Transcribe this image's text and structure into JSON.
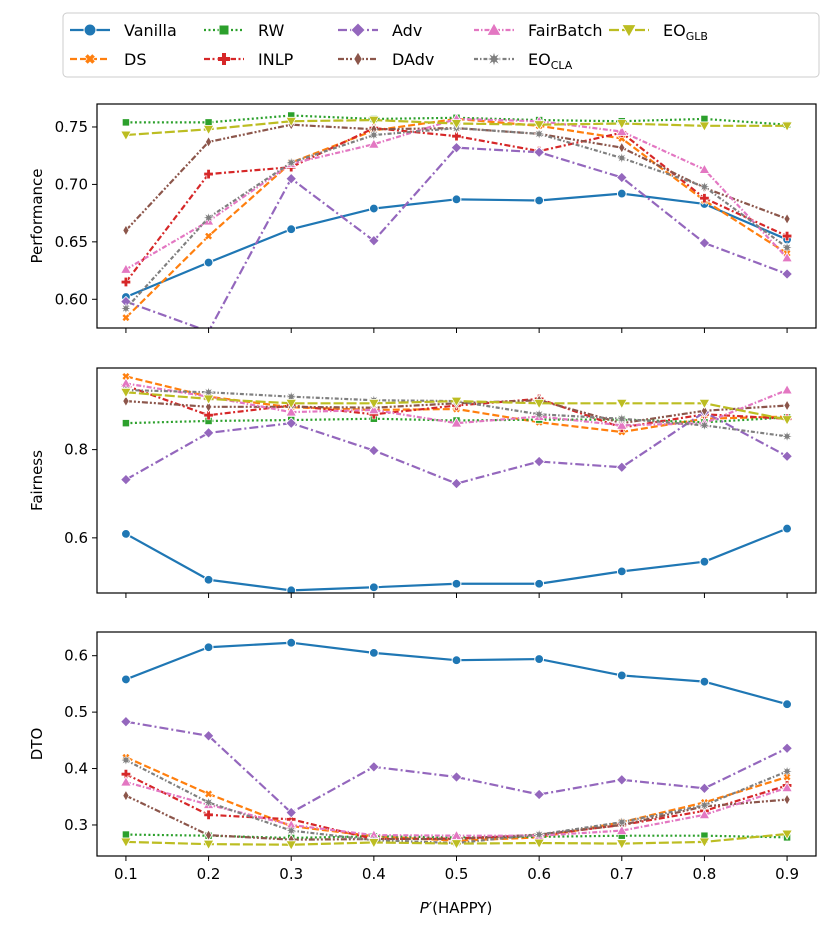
{
  "chart_data": {
    "type": "line",
    "x": [
      0.1,
      0.2,
      0.3,
      0.4,
      0.5,
      0.6,
      0.7,
      0.8,
      0.9
    ],
    "x_ticks": [
      "0.1",
      "0.2",
      "0.3",
      "0.4",
      "0.5",
      "0.6",
      "0.7",
      "0.8",
      "0.9"
    ],
    "xlabel_main": "P′",
    "xlabel_paren": "(HAPPY)",
    "legend": {
      "placement": "top",
      "entries": [
        {
          "name": "Vanilla",
          "sub": "",
          "color": "#1f77b4",
          "dash": "solid",
          "marker": "circle"
        },
        {
          "name": "DS",
          "sub": "",
          "color": "#ff7f0e",
          "dash": "dashed",
          "marker": "x"
        },
        {
          "name": "RW",
          "sub": "",
          "color": "#2ca02c",
          "dash": "dotted",
          "marker": "square"
        },
        {
          "name": "INLP",
          "sub": "",
          "color": "#d62728",
          "dash": "dashdot",
          "marker": "plus"
        },
        {
          "name": "Adv",
          "sub": "",
          "color": "#9467bd",
          "dash": "dashdot-long",
          "marker": "diamond"
        },
        {
          "name": "DAdv",
          "sub": "",
          "color": "#8c564b",
          "dash": "dashdotdot",
          "marker": "thin-diamond"
        },
        {
          "name": "FairBatch",
          "sub": "",
          "color": "#e377c2",
          "dash": "dashdot-dense",
          "marker": "triangle-up"
        },
        {
          "name": "EO",
          "sub": "CLA",
          "color": "#7f7f7f",
          "dash": "dashed-dot-dense",
          "marker": "star"
        },
        {
          "name": "EO",
          "sub": "GLB",
          "color": "#bcbd22",
          "dash": "longdash",
          "marker": "triangle-down"
        }
      ]
    },
    "panels": [
      {
        "ylabel": "Performance",
        "ylim": [
          0.575,
          0.77
        ],
        "y_ticks": [
          0.6,
          0.65,
          0.7,
          0.75
        ],
        "y_tick_labels": [
          "0.60",
          "0.65",
          "0.70",
          "0.75"
        ],
        "series": [
          {
            "name": "Vanilla",
            "values": [
              0.602,
              0.632,
              0.661,
              0.679,
              0.687,
              0.686,
              0.692,
              0.683,
              0.652
            ]
          },
          {
            "name": "DS",
            "values": [
              0.584,
              0.655,
              0.719,
              0.747,
              0.757,
              0.751,
              0.74,
              0.686,
              0.64
            ]
          },
          {
            "name": "RW",
            "values": [
              0.754,
              0.754,
              0.76,
              0.757,
              0.758,
              0.756,
              0.755,
              0.757,
              0.752
            ]
          },
          {
            "name": "INLP",
            "values": [
              0.615,
              0.709,
              0.715,
              0.749,
              0.742,
              0.729,
              0.745,
              0.688,
              0.655
            ]
          },
          {
            "name": "Adv",
            "values": [
              0.598,
              0.572,
              0.705,
              0.651,
              0.732,
              0.728,
              0.706,
              0.649,
              0.622
            ]
          },
          {
            "name": "DAdv",
            "values": [
              0.66,
              0.737,
              0.752,
              0.748,
              0.749,
              0.744,
              0.732,
              0.697,
              0.67
            ]
          },
          {
            "name": "FairBatch",
            "values": [
              0.626,
              0.668,
              0.718,
              0.735,
              0.757,
              0.755,
              0.746,
              0.713,
              0.636
            ]
          },
          {
            "name": "EOCLA",
            "values": [
              0.592,
              0.671,
              0.719,
              0.743,
              0.749,
              0.744,
              0.723,
              0.698,
              0.645
            ]
          },
          {
            "name": "EOGLB",
            "values": [
              0.743,
              0.748,
              0.755,
              0.756,
              0.753,
              0.752,
              0.753,
              0.751,
              0.751
            ]
          }
        ]
      },
      {
        "ylabel": "Fairness",
        "ylim": [
          0.475,
          0.985
        ],
        "y_ticks": [
          0.6,
          0.8
        ],
        "y_tick_labels": [
          "0.6",
          "0.8"
        ],
        "series": [
          {
            "name": "Vanilla",
            "values": [
              0.609,
              0.505,
              0.481,
              0.488,
              0.496,
              0.496,
              0.524,
              0.546,
              0.621
            ]
          },
          {
            "name": "DS",
            "values": [
              0.966,
              0.92,
              0.896,
              0.89,
              0.892,
              0.862,
              0.84,
              0.87,
              0.875
            ]
          },
          {
            "name": "RW",
            "values": [
              0.86,
              0.865,
              0.867,
              0.87,
              0.866,
              0.868,
              0.868,
              0.862,
              0.873
            ]
          },
          {
            "name": "INLP",
            "values": [
              0.945,
              0.878,
              0.9,
              0.88,
              0.9,
              0.915,
              0.85,
              0.88,
              0.87
            ]
          },
          {
            "name": "Adv",
            "values": [
              0.732,
              0.838,
              0.86,
              0.798,
              0.723,
              0.773,
              0.76,
              0.885,
              0.785
            ]
          },
          {
            "name": "DAdv",
            "values": [
              0.91,
              0.897,
              0.897,
              0.895,
              0.905,
              0.912,
              0.86,
              0.888,
              0.9
            ]
          },
          {
            "name": "FairBatch",
            "values": [
              0.95,
              0.92,
              0.885,
              0.89,
              0.86,
              0.875,
              0.855,
              0.86,
              0.935
            ]
          },
          {
            "name": "EOCLA",
            "values": [
              0.935,
              0.93,
              0.92,
              0.912,
              0.91,
              0.88,
              0.87,
              0.855,
              0.83
            ]
          },
          {
            "name": "EOGLB",
            "values": [
              0.93,
              0.915,
              0.905,
              0.905,
              0.91,
              0.905,
              0.905,
              0.905,
              0.868
            ]
          }
        ]
      },
      {
        "ylabel": "DTO",
        "ylim": [
          0.245,
          0.642
        ],
        "y_ticks": [
          0.3,
          0.4,
          0.5,
          0.6
        ],
        "y_tick_labels": [
          "0.3",
          "0.4",
          "0.5",
          "0.6"
        ],
        "series": [
          {
            "name": "Vanilla",
            "values": [
              0.558,
              0.615,
              0.623,
              0.605,
              0.592,
              0.594,
              0.565,
              0.554,
              0.514
            ]
          },
          {
            "name": "DS",
            "values": [
              0.42,
              0.355,
              0.298,
              0.28,
              0.272,
              0.278,
              0.305,
              0.34,
              0.385
            ]
          },
          {
            "name": "RW",
            "values": [
              0.283,
              0.281,
              0.277,
              0.28,
              0.278,
              0.279,
              0.281,
              0.281,
              0.278
            ]
          },
          {
            "name": "INLP",
            "values": [
              0.39,
              0.318,
              0.31,
              0.275,
              0.276,
              0.282,
              0.3,
              0.325,
              0.37
            ]
          },
          {
            "name": "Adv",
            "values": [
              0.483,
              0.458,
              0.322,
              0.403,
              0.385,
              0.354,
              0.38,
              0.365,
              0.436
            ]
          },
          {
            "name": "DAdv",
            "values": [
              0.352,
              0.282,
              0.274,
              0.275,
              0.275,
              0.283,
              0.3,
              0.333,
              0.345
            ]
          },
          {
            "name": "FairBatch",
            "values": [
              0.376,
              0.336,
              0.3,
              0.282,
              0.281,
              0.281,
              0.29,
              0.318,
              0.366
            ]
          },
          {
            "name": "EOCLA",
            "values": [
              0.415,
              0.34,
              0.29,
              0.273,
              0.268,
              0.283,
              0.305,
              0.335,
              0.395
            ]
          },
          {
            "name": "EOGLB",
            "values": [
              0.27,
              0.266,
              0.265,
              0.269,
              0.267,
              0.268,
              0.267,
              0.27,
              0.284
            ]
          }
        ]
      }
    ]
  }
}
